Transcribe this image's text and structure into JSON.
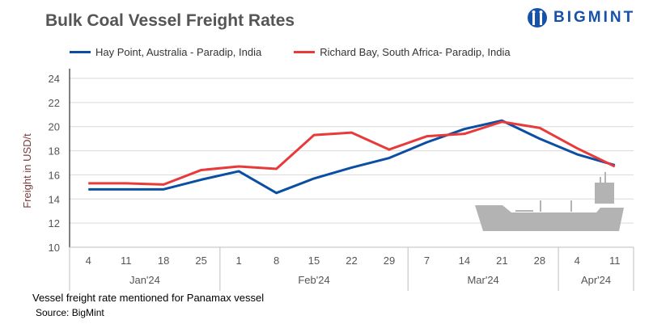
{
  "title": "Bulk Coal Vessel Freight Rates",
  "logo": "BIGMINT",
  "note": "Vessel freight rate mentioned for Panamax vessel",
  "source": "Source: BigMint",
  "chart_data": {
    "type": "line",
    "title": "Bulk Coal Vessel Freight Rates",
    "ylabel": "Freight  in USD/t",
    "xlabel": "",
    "ylim": [
      10,
      24
    ],
    "yticks": [
      10,
      12,
      14,
      16,
      18,
      20,
      22,
      24
    ],
    "grid": true,
    "legend": "top",
    "categories": [
      "4",
      "11",
      "18",
      "25",
      "1",
      "8",
      "15",
      "22",
      "29",
      "7",
      "14",
      "21",
      "28",
      "4",
      "11"
    ],
    "months": [
      {
        "label": "Jan'24",
        "count": 4
      },
      {
        "label": "Feb'24",
        "count": 5
      },
      {
        "label": "Mar'24",
        "count": 4
      },
      {
        "label": "Apr'24",
        "count": 2
      }
    ],
    "series": [
      {
        "name": "Hay Point, Australia - Paradip, India",
        "color": "#0b4ea2",
        "values": [
          14.8,
          14.8,
          14.8,
          15.6,
          16.3,
          14.5,
          15.7,
          16.6,
          17.4,
          18.7,
          19.8,
          20.5,
          19.0,
          17.7,
          16.8
        ]
      },
      {
        "name": "Richard Bay, South Africa- Paradip, India",
        "color": "#e83a3a",
        "values": [
          15.3,
          15.3,
          15.2,
          16.4,
          16.7,
          16.5,
          19.3,
          19.5,
          18.1,
          19.2,
          19.4,
          20.4,
          19.9,
          18.2,
          16.7
        ]
      }
    ]
  }
}
